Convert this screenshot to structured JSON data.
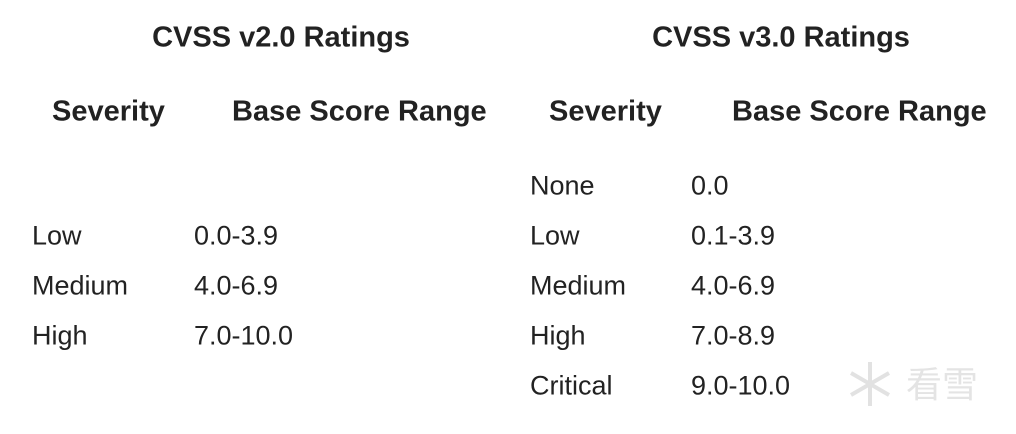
{
  "tables": [
    {
      "title": "CVSS v2.0 Ratings",
      "headers": [
        "Severity",
        "Base Score Range"
      ],
      "rows": [
        [
          "Low",
          "0.0-3.9"
        ],
        [
          "Medium",
          "4.0-6.9"
        ],
        [
          "High",
          "7.0-10.0"
        ]
      ]
    },
    {
      "title": "CVSS v3.0 Ratings",
      "headers": [
        "Severity",
        "Base Score Range"
      ],
      "rows": [
        [
          "None",
          "0.0"
        ],
        [
          "Low",
          "0.1-3.9"
        ],
        [
          "Medium",
          "4.0-6.9"
        ],
        [
          "High",
          "7.0-8.9"
        ],
        [
          "Critical",
          "9.0-10.0"
        ]
      ]
    }
  ],
  "watermark": "看雪"
}
